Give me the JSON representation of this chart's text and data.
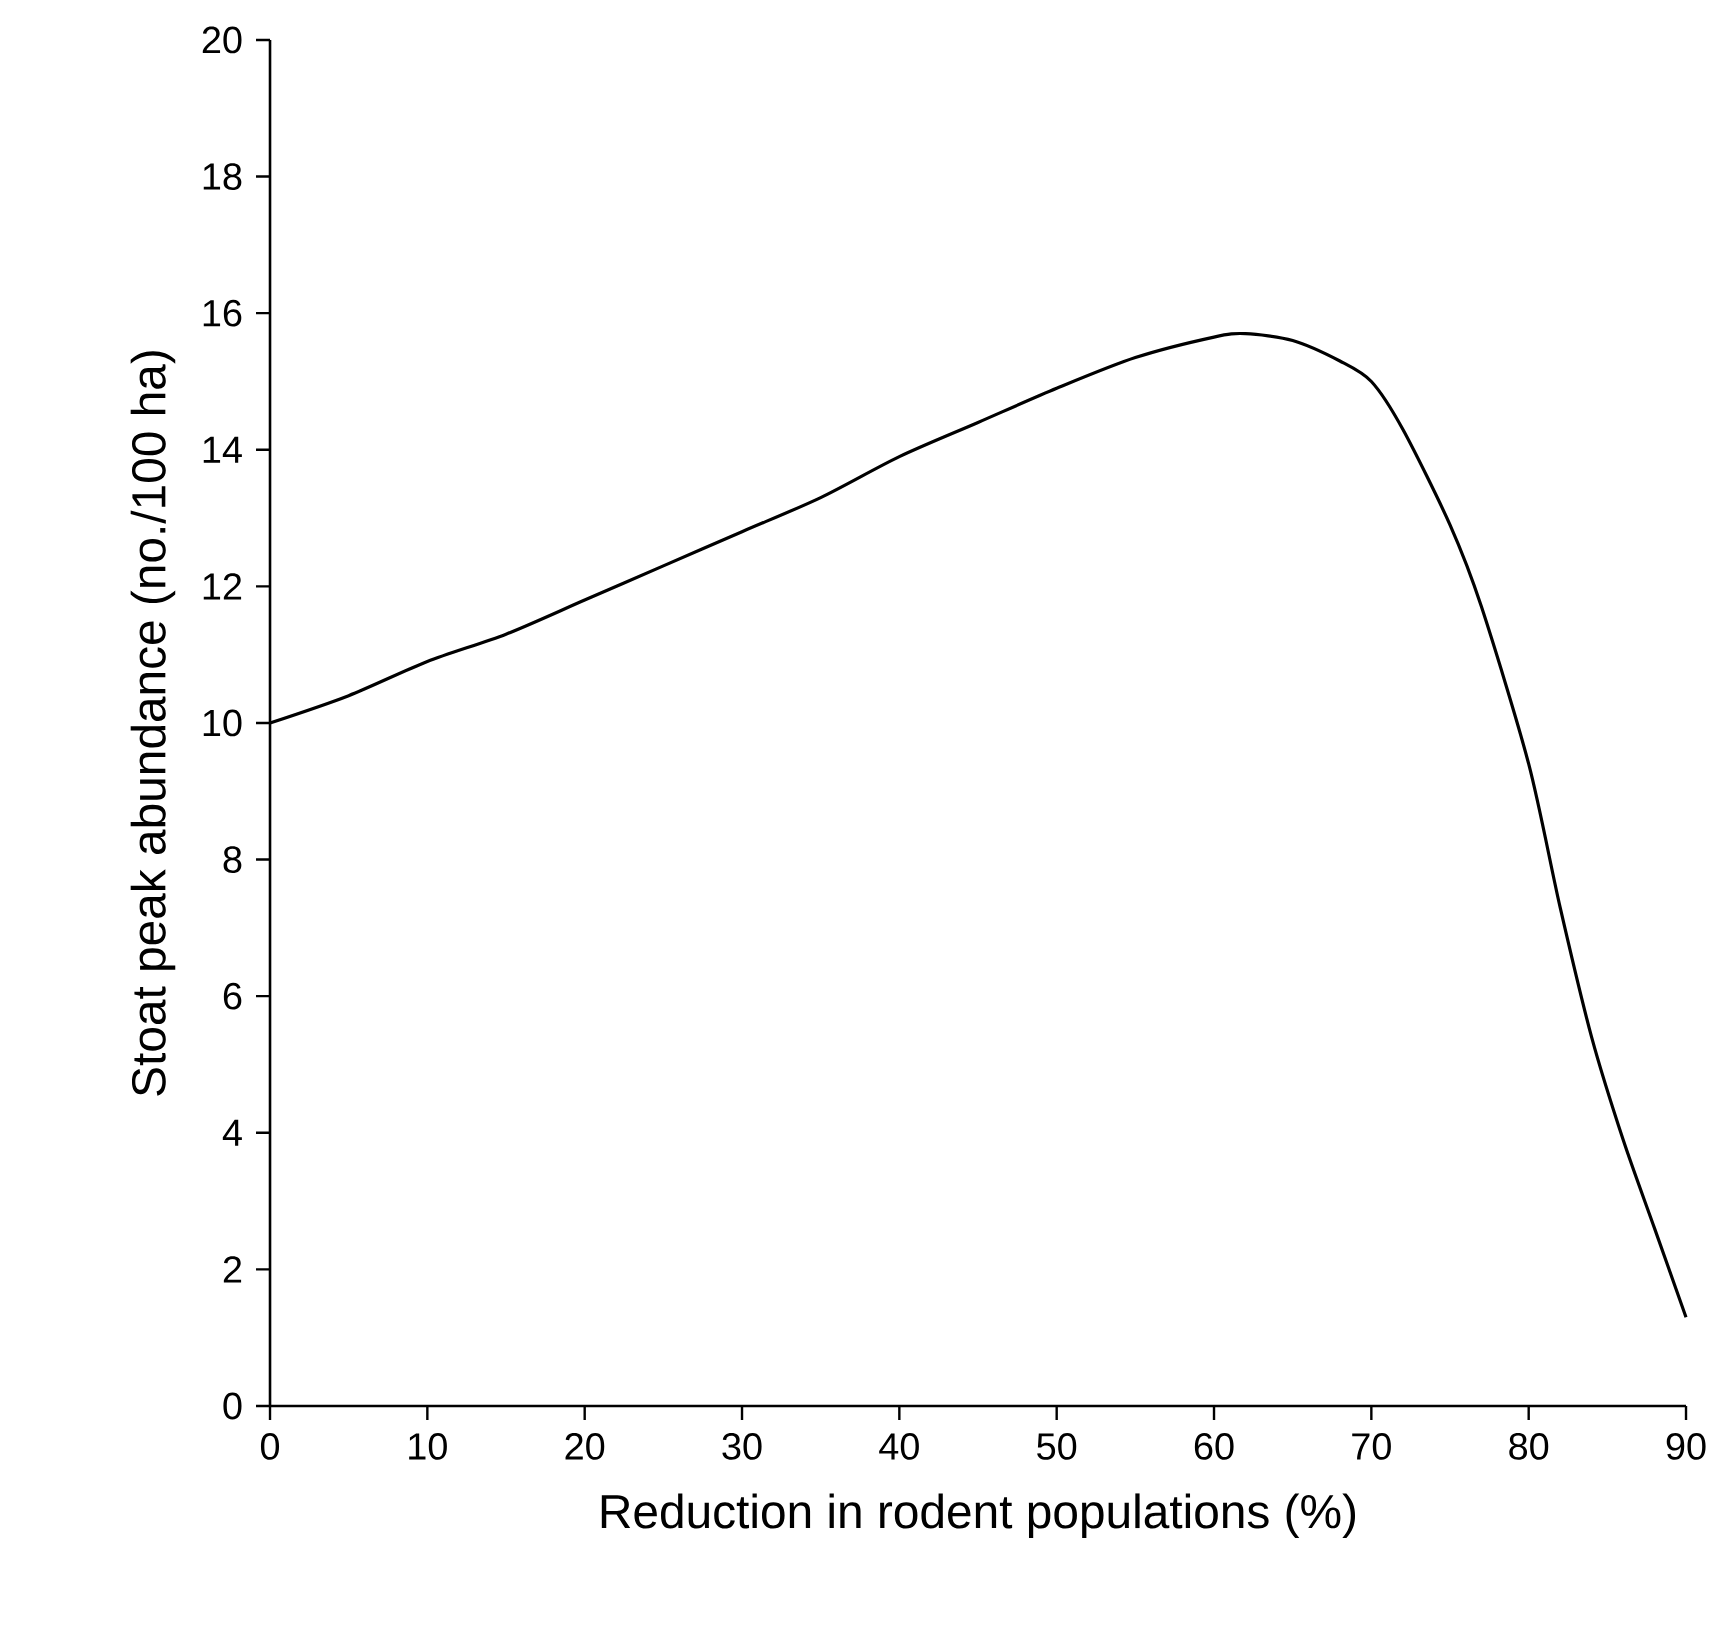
{
  "chart_data": {
    "type": "line",
    "xlabel": "Reduction in rodent populations (%)",
    "ylabel": "Stoat peak abundance (no./100 ha)",
    "x": [
      0,
      5,
      10,
      15,
      20,
      25,
      30,
      35,
      40,
      45,
      50,
      55,
      60,
      62,
      65,
      68,
      70,
      72,
      75,
      77,
      80,
      82,
      84,
      86,
      88,
      90
    ],
    "series": [
      {
        "color": "#000000",
        "values": [
          10,
          10.4,
          10.9,
          11.3,
          11.8,
          12.3,
          12.8,
          13.3,
          13.9,
          14.4,
          14.9,
          15.35,
          15.65,
          15.7,
          15.6,
          15.3,
          15.0,
          14.3,
          12.9,
          11.7,
          9.4,
          7.3,
          5.4,
          3.9,
          2.6,
          1.3
        ]
      }
    ],
    "xlim": [
      0,
      90
    ],
    "xticks": [
      0,
      10,
      20,
      30,
      40,
      50,
      60,
      70,
      80,
      90
    ],
    "ylim": [
      0,
      20
    ],
    "yticks": [
      0,
      2,
      4,
      6,
      8,
      10,
      12,
      14,
      16,
      18,
      20
    ],
    "grid": false,
    "marker": "none",
    "line_style": "solid"
  }
}
